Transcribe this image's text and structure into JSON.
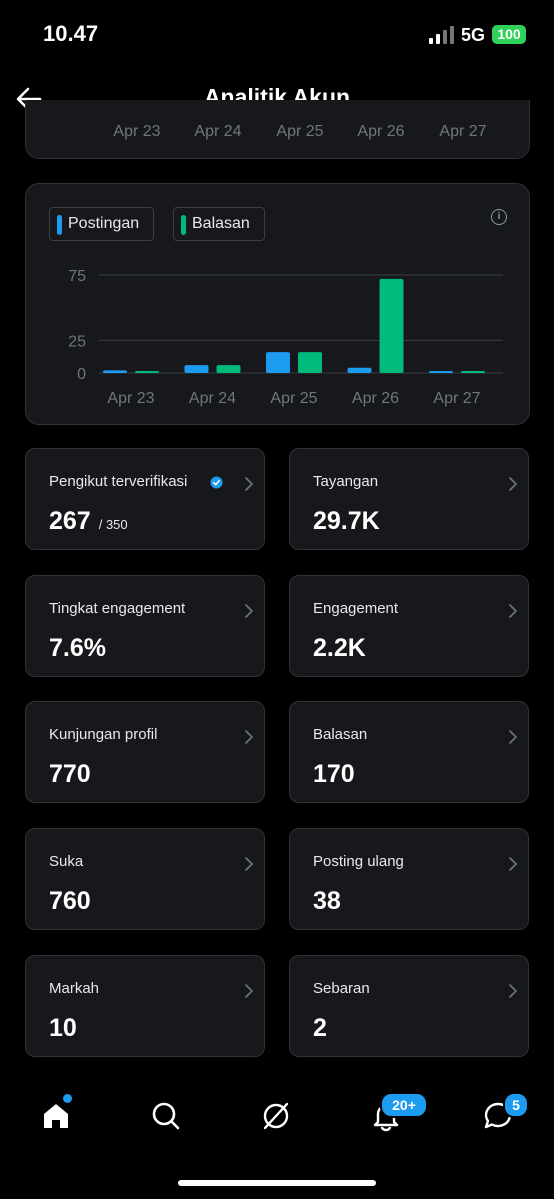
{
  "status_bar": {
    "time": "10.47",
    "network": "5G",
    "battery": "100"
  },
  "header": {
    "title": "Analitik Akun"
  },
  "prev_chart": {
    "x_labels": [
      "Apr 23",
      "Apr 24",
      "Apr 25",
      "Apr 26",
      "Apr 27"
    ]
  },
  "legend": {
    "posts_label": "Postingan",
    "replies_label": "Balasan"
  },
  "colors": {
    "posts": "#1d9bf0",
    "replies": "#00ba7c",
    "accent": "#1d9bf0"
  },
  "chart_data": {
    "type": "bar",
    "categories": [
      "Apr 23",
      "Apr 24",
      "Apr 25",
      "Apr 26",
      "Apr 27"
    ],
    "series": [
      {
        "name": "Postingan",
        "values": [
          2,
          6,
          16,
          4,
          0
        ]
      },
      {
        "name": "Balasan",
        "values": [
          1,
          6,
          16,
          72,
          1
        ]
      }
    ],
    "y_ticks": [
      "0",
      "25",
      "75"
    ],
    "ylim": [
      0,
      75
    ],
    "grid": true
  },
  "stats": [
    {
      "label": "Pengikut terverifikasi",
      "value": "267",
      "sub": "/ 350",
      "verified": true
    },
    {
      "label": "Tayangan",
      "value": "29.7K"
    },
    {
      "label": "Tingkat engagement",
      "value": "7.6%"
    },
    {
      "label": "Engagement",
      "value": "2.2K"
    },
    {
      "label": "Kunjungan profil",
      "value": "770"
    },
    {
      "label": "Balasan",
      "value": "170"
    },
    {
      "label": "Suka",
      "value": "760"
    },
    {
      "label": "Posting ulang",
      "value": "38"
    },
    {
      "label": "Markah",
      "value": "10"
    },
    {
      "label": "Sebaran",
      "value": "2"
    }
  ],
  "tabbar": {
    "icons": [
      "home-icon",
      "search-icon",
      "grok-icon",
      "bell-icon",
      "messages-icon"
    ],
    "notifications_badge": "20+",
    "messages_badge": "5"
  }
}
